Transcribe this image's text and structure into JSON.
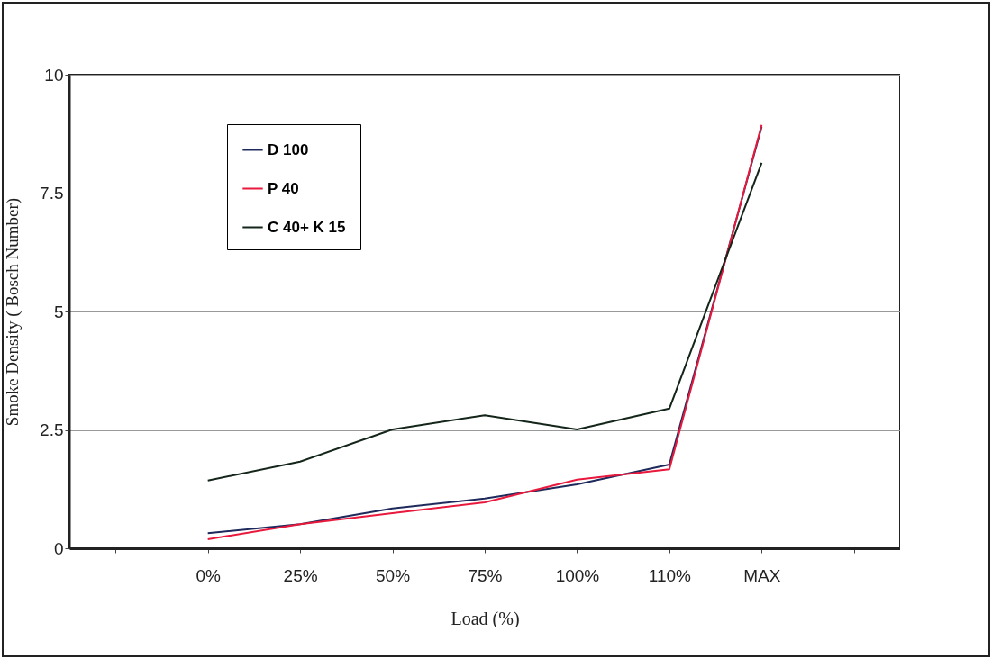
{
  "chart_data": {
    "type": "line",
    "xlabel": "Load (%)",
    "ylabel": "Smoke Density ( Bosch Number)",
    "categories": [
      null,
      "0%",
      "25%",
      "50%",
      "75%",
      "100%",
      "110%",
      "MAX",
      null
    ],
    "series": [
      {
        "name": "D 100",
        "color": "#1f2a5c",
        "values": [
          null,
          0.32,
          0.51,
          0.84,
          1.05,
          1.35,
          1.77,
          8.9,
          null
        ]
      },
      {
        "name": "P 40",
        "color": "#e8193c",
        "values": [
          null,
          0.19,
          0.51,
          0.74,
          0.97,
          1.45,
          1.67,
          8.94,
          null
        ]
      },
      {
        "name": "C 40+ K 15",
        "color": "#14251a",
        "values": [
          null,
          1.43,
          1.83,
          2.51,
          2.81,
          2.51,
          2.95,
          8.14,
          null
        ]
      }
    ],
    "ylim": [
      0,
      10
    ],
    "yticks": [
      0,
      {
        "value": 2.5,
        "label": "2.5"
      },
      5,
      {
        "value": 7.5,
        "label": "7.5"
      },
      10
    ],
    "grid": "y",
    "legend": "top left",
    "line_style": "solid",
    "marker": "none"
  }
}
